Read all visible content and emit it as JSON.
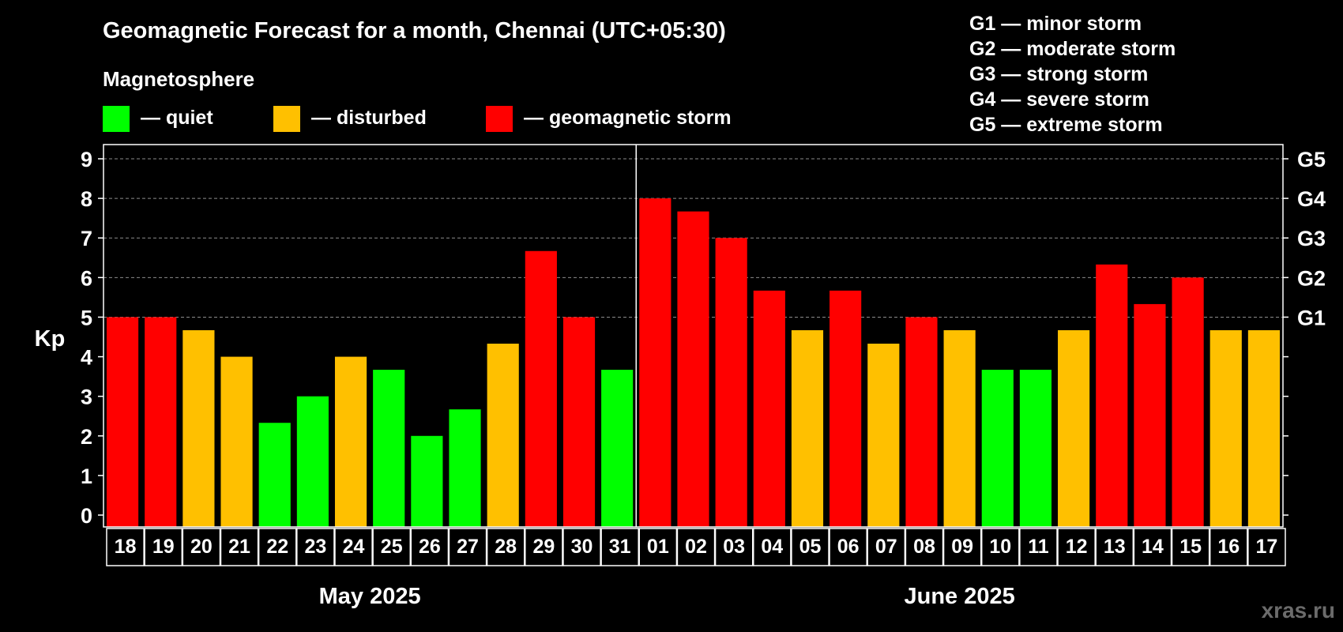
{
  "chart_data": {
    "type": "bar",
    "title": "Geomagnetic Forecast for a month, Chennai (UTC+05:30)",
    "subtitle": "Magnetosphere",
    "legend": [
      {
        "label": "— quiet",
        "color": "#00ff00"
      },
      {
        "label": "— disturbed",
        "color": "#ffc000"
      },
      {
        "label": "— geomagnetic storm",
        "color": "#ff0000"
      }
    ],
    "storm_scale": [
      "G1 — minor storm",
      "G2 — moderate storm",
      "G3 — strong storm",
      "G4 — severe storm",
      "G5 — extreme storm"
    ],
    "ylabel": "Kp",
    "ylim": [
      0,
      9
    ],
    "yticks": [
      0,
      1,
      2,
      3,
      4,
      5,
      6,
      7,
      8,
      9
    ],
    "right_ticks": [
      {
        "value": 5,
        "label": "G1"
      },
      {
        "value": 6,
        "label": "G2"
      },
      {
        "value": 7,
        "label": "G3"
      },
      {
        "value": 8,
        "label": "G4"
      },
      {
        "value": 9,
        "label": "G5"
      }
    ],
    "grid_values": [
      5,
      6,
      7,
      8,
      9
    ],
    "categories": [
      "18",
      "19",
      "20",
      "21",
      "22",
      "23",
      "24",
      "25",
      "26",
      "27",
      "28",
      "29",
      "30",
      "31",
      "01",
      "02",
      "03",
      "04",
      "05",
      "06",
      "07",
      "08",
      "09",
      "10",
      "11",
      "12",
      "13",
      "14",
      "15",
      "16",
      "17"
    ],
    "values": [
      5,
      5,
      4.67,
      4,
      2.33,
      3,
      4,
      3.67,
      2,
      2.67,
      4.33,
      6.67,
      5,
      3.67,
      8,
      7.67,
      7,
      5.67,
      4.67,
      5.67,
      4.33,
      5,
      4.67,
      3.67,
      3.67,
      4.67,
      6.33,
      5.33,
      6,
      4.67,
      4.67
    ],
    "status": [
      "storm",
      "storm",
      "disturbed",
      "disturbed",
      "quiet",
      "quiet",
      "disturbed",
      "quiet",
      "quiet",
      "quiet",
      "disturbed",
      "storm",
      "storm",
      "quiet",
      "storm",
      "storm",
      "storm",
      "storm",
      "disturbed",
      "storm",
      "disturbed",
      "storm",
      "disturbed",
      "quiet",
      "quiet",
      "disturbed",
      "storm",
      "storm",
      "storm",
      "disturbed",
      "disturbed"
    ],
    "status_colors": {
      "quiet": "#00ff00",
      "disturbed": "#ffc000",
      "storm": "#ff0000"
    },
    "months": [
      {
        "label": "May 2025",
        "count": 14
      },
      {
        "label": "June 2025",
        "count": 17
      }
    ],
    "watermark": "xras.ru"
  }
}
